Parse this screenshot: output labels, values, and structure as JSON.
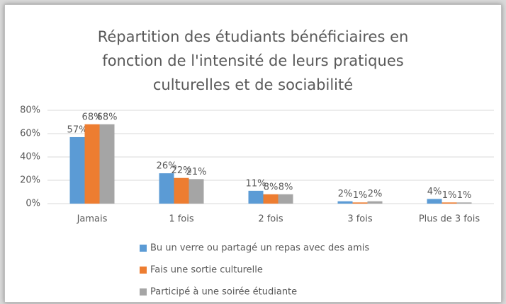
{
  "chart_data": {
    "type": "bar",
    "title": "Répartition des étudiants bénéficiaires en fonction de l'intensité de leurs pratiques culturelles et de sociabilité",
    "categories": [
      "Jamais",
      "1 fois",
      "2 fois",
      "3 fois",
      "Plus de 3 fois"
    ],
    "series": [
      {
        "name": "Bu un verre ou partagé un repas avec des amis",
        "color": "#5b9bd5",
        "values": [
          57,
          26,
          11,
          2,
          4
        ],
        "value_labels": [
          "57%",
          "26%",
          "11%",
          "2%",
          "4%"
        ]
      },
      {
        "name": "Fais une sortie culturelle",
        "color": "#ed7d31",
        "values": [
          68,
          22,
          8,
          1,
          1
        ],
        "value_labels": [
          "68%",
          "22%",
          "8%",
          "1%",
          "1%"
        ]
      },
      {
        "name": "Participé à une soirée étudiante",
        "color": "#a5a5a5",
        "values": [
          68,
          21,
          8,
          2,
          1
        ],
        "value_labels": [
          "68%",
          "21%",
          "8%",
          "2%",
          "1%"
        ]
      }
    ],
    "ylim": [
      0,
      80
    ],
    "yticks": [
      {
        "value": 0,
        "label": "0%"
      },
      {
        "value": 20,
        "label": "20%"
      },
      {
        "value": 40,
        "label": "40%"
      },
      {
        "value": 60,
        "label": "60%"
      },
      {
        "value": 80,
        "label": "80%"
      }
    ],
    "grid": true,
    "legend": "bottom"
  }
}
